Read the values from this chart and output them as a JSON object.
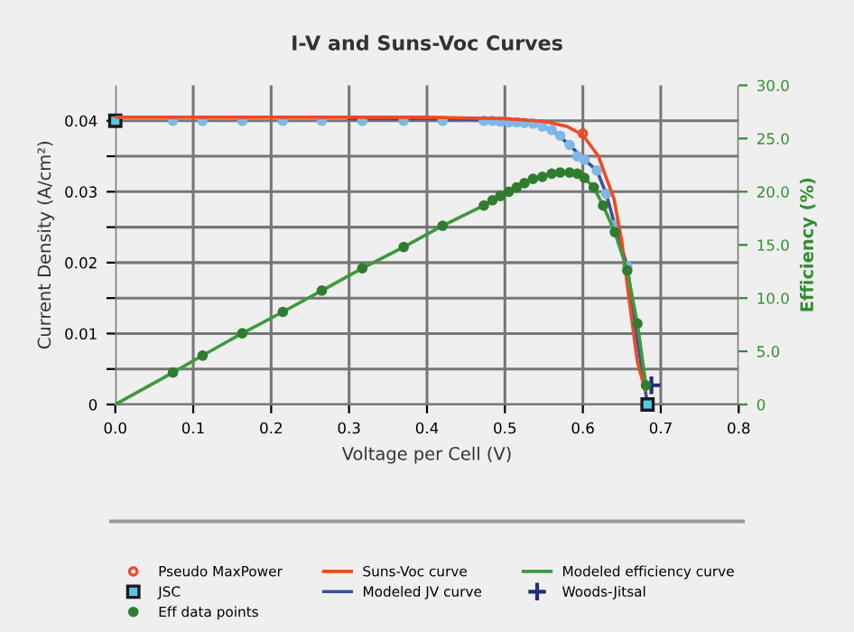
{
  "chart_data": {
    "type": "line",
    "title": "I-V and Suns-Voc Curves",
    "xlabel": "Voltage per Cell (V)",
    "ylabel": "Current Density (A/cm²)",
    "y2label": "Efficiency (%)",
    "xlim": [
      0,
      0.8
    ],
    "xticks": [
      {
        "value": 0,
        "label": "0.0"
      },
      0.1,
      0.2,
      0.3,
      0.4,
      0.5,
      0.6,
      0.7,
      0.8
    ],
    "ylim": [
      0,
      0.045
    ],
    "yticks": [
      0,
      {
        "value": 0.005,
        "label": null
      },
      0.01,
      {
        "value": 0.015,
        "label": null
      },
      0.02,
      {
        "value": 0.025,
        "label": null
      },
      0.03,
      {
        "value": 0.035,
        "label": null
      },
      0.04
    ],
    "y2lim": [
      0,
      30
    ],
    "y2ticks": [
      0,
      {
        "value": 5,
        "label": "5.0"
      },
      {
        "value": 10,
        "label": "10.0"
      },
      {
        "value": 15,
        "label": "15.0"
      },
      {
        "value": 20,
        "label": "20.0"
      },
      {
        "value": 25,
        "label": "25.0"
      },
      {
        "value": 30,
        "label": "30.0"
      }
    ],
    "grid": true,
    "legend": "bottom",
    "series": [
      {
        "name": "Suns-Voc curve",
        "color": "#f04a23",
        "marker": "none",
        "x": [
          0,
          0.1,
          0.2,
          0.3,
          0.4,
          0.5,
          0.55,
          0.58,
          0.6,
          0.62,
          0.64,
          0.65,
          0.66,
          0.67,
          0.68
        ],
        "values": [
          0.0405,
          0.0405,
          0.0405,
          0.0405,
          0.0405,
          0.0403,
          0.0399,
          0.0392,
          0.038,
          0.035,
          0.029,
          0.023,
          0.0143,
          0.006,
          0.002
        ]
      },
      {
        "name": "Modeled JV curve",
        "color": "#3b4ea3",
        "marker": "none",
        "x": [
          0.3,
          0.4,
          0.473,
          0.505,
          0.536,
          0.56,
          0.583,
          0.602,
          0.618,
          0.63,
          0.641,
          0.657,
          0.67,
          0.683
        ],
        "values": [
          0.0403,
          0.0403,
          0.0402,
          0.0398,
          0.0396,
          0.0387,
          0.0366,
          0.0345,
          0.033,
          0.0297,
          0.0253,
          0.0195,
          0.009,
          0
        ]
      },
      {
        "type": "scatter",
        "color": "#7fb8e6",
        "marker": "circle",
        "x": [
          0.074,
          0.112,
          0.163,
          0.215,
          0.265,
          0.317,
          0.37,
          0.42,
          0.473,
          0.484,
          0.494,
          0.505,
          0.515,
          0.525,
          0.536,
          0.548,
          0.56,
          0.571,
          0.583,
          0.593,
          0.602,
          0.618,
          0.63,
          0.641,
          0.657
        ],
        "values": [
          0.04,
          0.04,
          0.04,
          0.04,
          0.04,
          0.04,
          0.04,
          0.04,
          0.04,
          0.04,
          0.0399,
          0.0398,
          0.0398,
          0.0397,
          0.0396,
          0.0392,
          0.0387,
          0.0379,
          0.0366,
          0.035,
          0.0345,
          0.033,
          0.0297,
          0.0253,
          0.0195
        ]
      },
      {
        "name": "Modeled efficiency curve",
        "axis": "y2",
        "color": "#3c9a3c",
        "marker": "none",
        "x": [
          0,
          0.074,
          0.112,
          0.163,
          0.215,
          0.265,
          0.317,
          0.37,
          0.42,
          0.473,
          0.505,
          0.536,
          0.56,
          0.583,
          0.602,
          0.614,
          0.626,
          0.641,
          0.657,
          0.67,
          0.681
        ],
        "values": [
          0,
          3.0,
          4.6,
          6.7,
          8.7,
          10.7,
          12.8,
          14.8,
          16.8,
          18.7,
          20.0,
          21.2,
          21.7,
          21.8,
          21.3,
          20.4,
          18.7,
          16.2,
          12.6,
          7.6,
          1.8
        ]
      },
      {
        "name": "Pseudo MaxPower",
        "type": "scatter",
        "color": "#f04a23",
        "marker": "circle",
        "x": [
          0.6
        ],
        "values": [
          0.0382
        ]
      },
      {
        "name": "JSC",
        "type": "scatter",
        "color": "#55c8e8",
        "marker": "square",
        "x": [
          0,
          0.683
        ],
        "values": [
          0.04,
          0
        ]
      },
      {
        "name": "Eff data points",
        "type": "scatter",
        "axis": "y2",
        "color": "#2f7d2f",
        "marker": "circle",
        "x": [
          0.074,
          0.112,
          0.163,
          0.215,
          0.265,
          0.317,
          0.37,
          0.42,
          0.473,
          0.484,
          0.494,
          0.505,
          0.515,
          0.525,
          0.536,
          0.548,
          0.56,
          0.571,
          0.583,
          0.593,
          0.602,
          0.614,
          0.626,
          0.641,
          0.657,
          0.67,
          0.681
        ],
        "values": [
          3.0,
          4.6,
          6.7,
          8.7,
          10.7,
          12.8,
          14.8,
          16.8,
          18.7,
          19.2,
          19.6,
          20.0,
          20.4,
          20.8,
          21.2,
          21.4,
          21.7,
          21.8,
          21.8,
          21.7,
          21.3,
          20.4,
          18.7,
          16.2,
          12.6,
          7.6,
          1.8
        ]
      },
      {
        "name": "Woods-Jitsal",
        "type": "scatter",
        "axis": "y2",
        "color": "#1f2f7f",
        "marker": "cross",
        "x": [
          0.688
        ],
        "values": [
          1.8
        ]
      }
    ]
  }
}
